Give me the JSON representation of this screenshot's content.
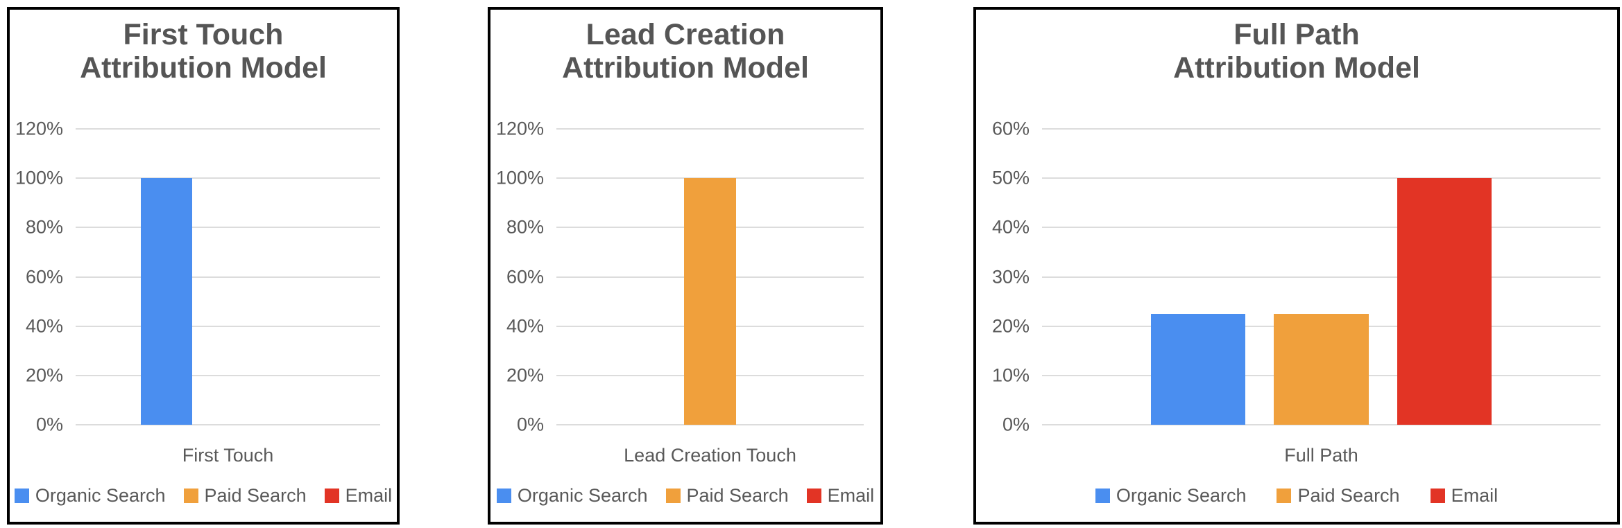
{
  "colors": {
    "organic_search": "#4A8EF0",
    "paid_search": "#F0A03C",
    "email": "#E23425",
    "title_text": "#555555",
    "axis_text": "#595959",
    "gridline": "#DCDCDC",
    "chart_border": "#000000",
    "background": "#FFFFFF"
  },
  "chart_data": [
    {
      "type": "bar",
      "title": "First Touch\nAttribution Model",
      "categories": [
        "First Touch"
      ],
      "series": [
        {
          "name": "Organic Search",
          "values": [
            100
          ]
        },
        {
          "name": "Paid Search",
          "values": [
            0
          ]
        },
        {
          "name": "Email",
          "values": [
            0
          ]
        }
      ],
      "series_colors": [
        "#4A8EF0",
        "#F0A03C",
        "#E23425"
      ],
      "xlabel": "",
      "ylabel": "",
      "ylim": [
        0,
        120
      ],
      "ytick_step": 20,
      "ytick_labels": [
        "120%",
        "100%",
        "80%",
        "60%",
        "40%",
        "20%",
        "0%"
      ],
      "grid": true,
      "legend_position": "bottom"
    },
    {
      "type": "bar",
      "title": "Lead Creation\nAttribution Model",
      "categories": [
        "Lead Creation Touch"
      ],
      "series": [
        {
          "name": "Organic Search",
          "values": [
            0
          ]
        },
        {
          "name": "Paid Search",
          "values": [
            100
          ]
        },
        {
          "name": "Email",
          "values": [
            0
          ]
        }
      ],
      "series_colors": [
        "#4A8EF0",
        "#F0A03C",
        "#E23425"
      ],
      "xlabel": "",
      "ylabel": "",
      "ylim": [
        0,
        120
      ],
      "ytick_step": 20,
      "ytick_labels": [
        "120%",
        "100%",
        "80%",
        "60%",
        "40%",
        "20%",
        "0%"
      ],
      "grid": true,
      "legend_position": "bottom"
    },
    {
      "type": "bar",
      "title": "Full Path\nAttribution Model",
      "categories": [
        "Full Path"
      ],
      "series": [
        {
          "name": "Organic Search",
          "values": [
            22.5
          ]
        },
        {
          "name": "Paid Search",
          "values": [
            22.5
          ]
        },
        {
          "name": "Email",
          "values": [
            50
          ]
        }
      ],
      "series_colors": [
        "#4A8EF0",
        "#F0A03C",
        "#E23425"
      ],
      "xlabel": "",
      "ylabel": "",
      "ylim": [
        0,
        60
      ],
      "ytick_step": 10,
      "ytick_labels": [
        "60%",
        "50%",
        "40%",
        "30%",
        "20%",
        "10%",
        "0%"
      ],
      "grid": true,
      "legend_position": "bottom"
    }
  ]
}
